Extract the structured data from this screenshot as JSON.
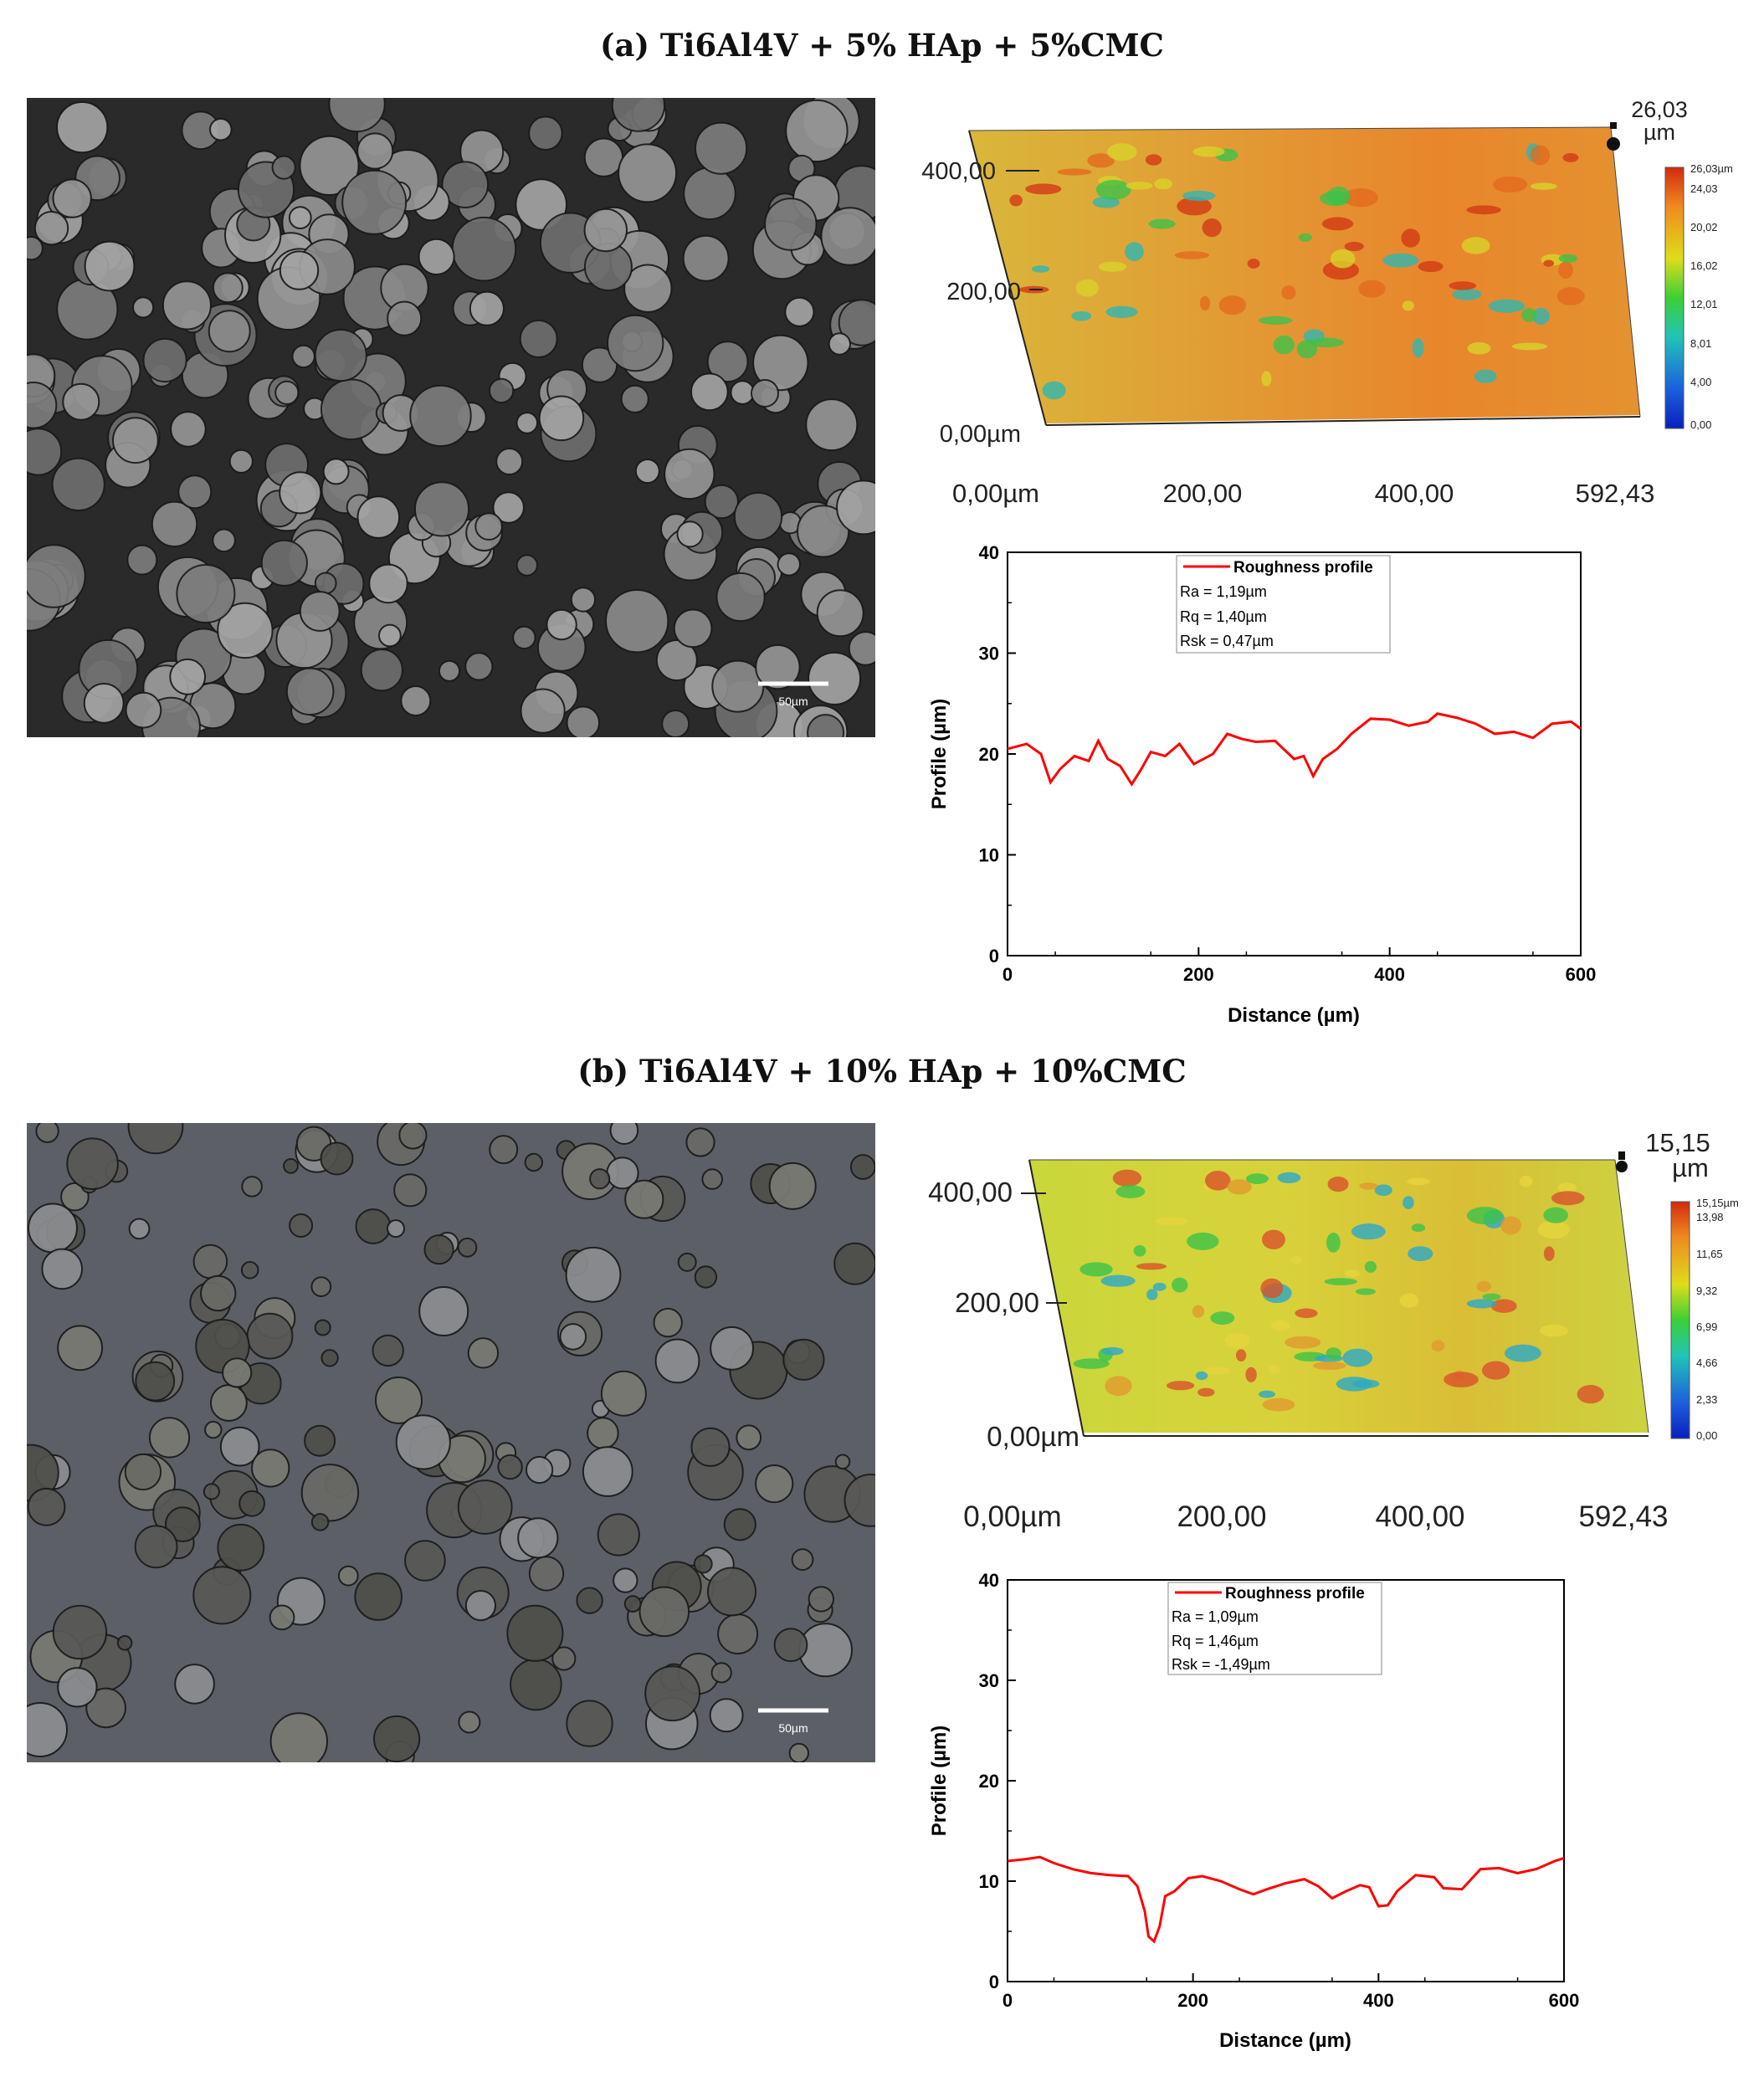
{
  "figure": {
    "panels": [
      {
        "title": "(a) Ti6Al4V + 5% HAp + 5%CMC",
        "scale_bar": "50µm",
        "surface_3d": {
          "max_label": "26,03",
          "max_unit": "µm",
          "y_ticks": [
            "400,00",
            "200,00",
            "0,00µm"
          ],
          "x_ticks": [
            "0,00µm",
            "200,00",
            "400,00",
            "592,43"
          ],
          "colorbar": [
            "26,03µm",
            "24,03",
            "20,02",
            "16,02",
            "12,01",
            "8,01",
            "4,00",
            "0,00"
          ]
        },
        "roughness": {
          "legend": "Roughness profile",
          "ra": "Ra = 1,19µm",
          "rq": "Rq = 1,40µm",
          "rsk": "Rsk = 0,47µm"
        }
      },
      {
        "title": "(b) Ti6Al4V + 10% HAp + 10%CMC",
        "scale_bar": "50µm",
        "surface_3d": {
          "max_label": "15,15",
          "max_unit": "µm",
          "y_ticks": [
            "400,00",
            "200,00",
            "0,00µm"
          ],
          "x_ticks": [
            "0,00µm",
            "200,00",
            "400,00",
            "592,43"
          ],
          "colorbar": [
            "15,15µm",
            "13,98",
            "11,65",
            "9,32",
            "6,99",
            "4,66",
            "2,33",
            "0,00"
          ]
        },
        "roughness": {
          "legend": "Roughness profile",
          "ra": "Ra = 1,09µm",
          "rq": "Rq = 1,46µm",
          "rsk": "Rsk = -1,49µm"
        }
      }
    ]
  },
  "chart_data": [
    {
      "type": "line",
      "xlabel": "Distance (µm)",
      "ylabel": "Profile (µm)",
      "xlim": [
        0,
        600
      ],
      "ylim": [
        0,
        40
      ],
      "x_ticks": [
        0,
        200,
        400,
        600
      ],
      "y_ticks": [
        0,
        10,
        20,
        30,
        40
      ],
      "series": [
        {
          "name": "Roughness profile",
          "color": "#ff0000",
          "x": [
            0,
            20,
            35,
            45,
            55,
            70,
            85,
            95,
            105,
            118,
            130,
            140,
            150,
            165,
            180,
            195,
            205,
            215,
            230,
            245,
            260,
            280,
            300,
            310,
            320,
            330,
            345,
            360,
            380,
            400,
            420,
            440,
            450,
            470,
            490,
            510,
            530,
            550,
            570,
            590,
            600
          ],
          "y": [
            20.5,
            21,
            20,
            17.2,
            18.5,
            19.8,
            19.3,
            21.3,
            19.5,
            18.8,
            17,
            18.5,
            20.2,
            19.8,
            21,
            19,
            19.5,
            20,
            22,
            21.5,
            21.2,
            21.3,
            19.5,
            19.8,
            17.8,
            19.5,
            20.5,
            22,
            23.5,
            23.4,
            22.8,
            23.2,
            24,
            23.6,
            23,
            22,
            22.2,
            21.6,
            23,
            23.2,
            22.5
          ]
        }
      ]
    },
    {
      "type": "line",
      "xlabel": "Distance (µm)",
      "ylabel": "Profile (µm)",
      "xlim": [
        0,
        600
      ],
      "ylim": [
        0,
        40
      ],
      "x_ticks": [
        0,
        200,
        400,
        600
      ],
      "y_ticks": [
        0,
        10,
        20,
        30,
        40
      ],
      "series": [
        {
          "name": "Roughness profile",
          "color": "#ff0000",
          "x": [
            0,
            20,
            35,
            50,
            70,
            90,
            110,
            130,
            140,
            148,
            152,
            158,
            164,
            170,
            180,
            195,
            210,
            230,
            250,
            265,
            280,
            300,
            320,
            335,
            350,
            365,
            380,
            390,
            400,
            410,
            420,
            440,
            460,
            470,
            490,
            510,
            530,
            550,
            570,
            590,
            600
          ],
          "y": [
            12,
            12.2,
            12.4,
            11.8,
            11.2,
            10.8,
            10.6,
            10.5,
            9.5,
            7,
            4.5,
            4,
            5.5,
            8.5,
            9,
            10.3,
            10.5,
            10,
            9.2,
            8.7,
            9.2,
            9.8,
            10.2,
            9.5,
            8.3,
            9,
            9.6,
            9.4,
            7.5,
            7.6,
            9,
            10.6,
            10.4,
            9.3,
            9.2,
            11.2,
            11.3,
            10.8,
            11.2,
            12,
            12.3
          ]
        }
      ]
    }
  ]
}
